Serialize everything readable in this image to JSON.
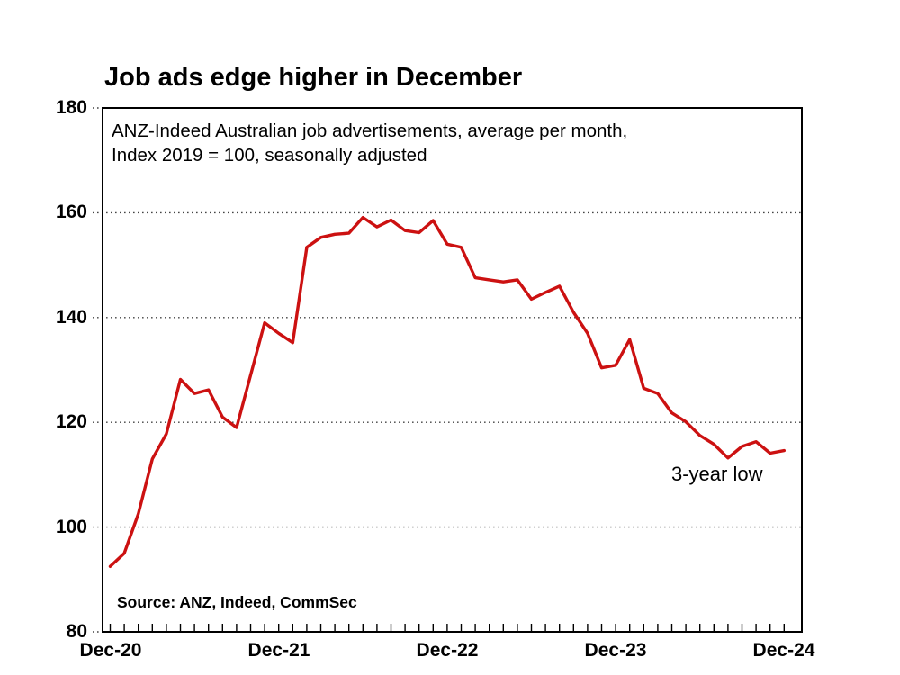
{
  "title": "Job ads edge higher in December",
  "subtitle_line1": "ANZ-Indeed Australian job advertisements, average per month,",
  "subtitle_line2": "Index 2019 = 100, seasonally adjusted",
  "source": "Source: ANZ, Indeed, CommSec",
  "annotation": "3-year low",
  "colors": {
    "line": "#cc1111",
    "grid_dots": "#444444",
    "axis": "#000000",
    "text": "#000000",
    "background": "#ffffff"
  },
  "chart_data": {
    "type": "line",
    "title": "Job ads edge higher in December",
    "xlabel": "",
    "ylabel": "Index 2019 = 100",
    "ylim": [
      80,
      180
    ],
    "yticks": [
      80,
      100,
      120,
      140,
      160,
      180
    ],
    "grid": "dotted-horizontal",
    "legend_position": "none",
    "x_months": [
      "Dec-20",
      "Jan-21",
      "Feb-21",
      "Mar-21",
      "Apr-21",
      "May-21",
      "Jun-21",
      "Jul-21",
      "Aug-21",
      "Sep-21",
      "Oct-21",
      "Nov-21",
      "Dec-21",
      "Jan-22",
      "Feb-22",
      "Mar-22",
      "Apr-22",
      "May-22",
      "Jun-22",
      "Jul-22",
      "Aug-22",
      "Sep-22",
      "Oct-22",
      "Nov-22",
      "Dec-22",
      "Jan-23",
      "Feb-23",
      "Mar-23",
      "Apr-23",
      "May-23",
      "Jun-23",
      "Jul-23",
      "Aug-23",
      "Sep-23",
      "Oct-23",
      "Nov-23",
      "Dec-23",
      "Jan-24",
      "Feb-24",
      "Mar-24",
      "Apr-24",
      "May-24",
      "Jun-24",
      "Jul-24",
      "Aug-24",
      "Sep-24",
      "Oct-24",
      "Nov-24",
      "Dec-24"
    ],
    "xtick_labels": [
      {
        "label": "Dec-20",
        "month_index": 0
      },
      {
        "label": "Dec-21",
        "month_index": 12
      },
      {
        "label": "Dec-22",
        "month_index": 24
      },
      {
        "label": "Dec-23",
        "month_index": 36
      },
      {
        "label": "Dec-24",
        "month_index": 48
      }
    ],
    "series": [
      {
        "name": "ANZ-Indeed Australian job advertisements (index, 2019 = 100)",
        "color": "#cc1111",
        "values": [
          92.5,
          95.0,
          102.5,
          113.0,
          117.8,
          128.2,
          125.5,
          126.2,
          121.0,
          119.0,
          129.0,
          139.0,
          137.0,
          135.2,
          153.4,
          155.3,
          155.9,
          156.1,
          159.1,
          157.3,
          158.6,
          156.6,
          156.2,
          158.5,
          154.0,
          153.4,
          147.6,
          147.2,
          146.8,
          147.2,
          143.5,
          144.8,
          146.0,
          141.0,
          137.0,
          130.4,
          130.9,
          135.8,
          126.5,
          125.5,
          121.8,
          120.1,
          117.5,
          115.8,
          113.2,
          115.4,
          116.3,
          114.1,
          114.6
        ]
      }
    ],
    "annotations": [
      {
        "text": "3-year low",
        "near_month": "Aug-24"
      }
    ]
  }
}
